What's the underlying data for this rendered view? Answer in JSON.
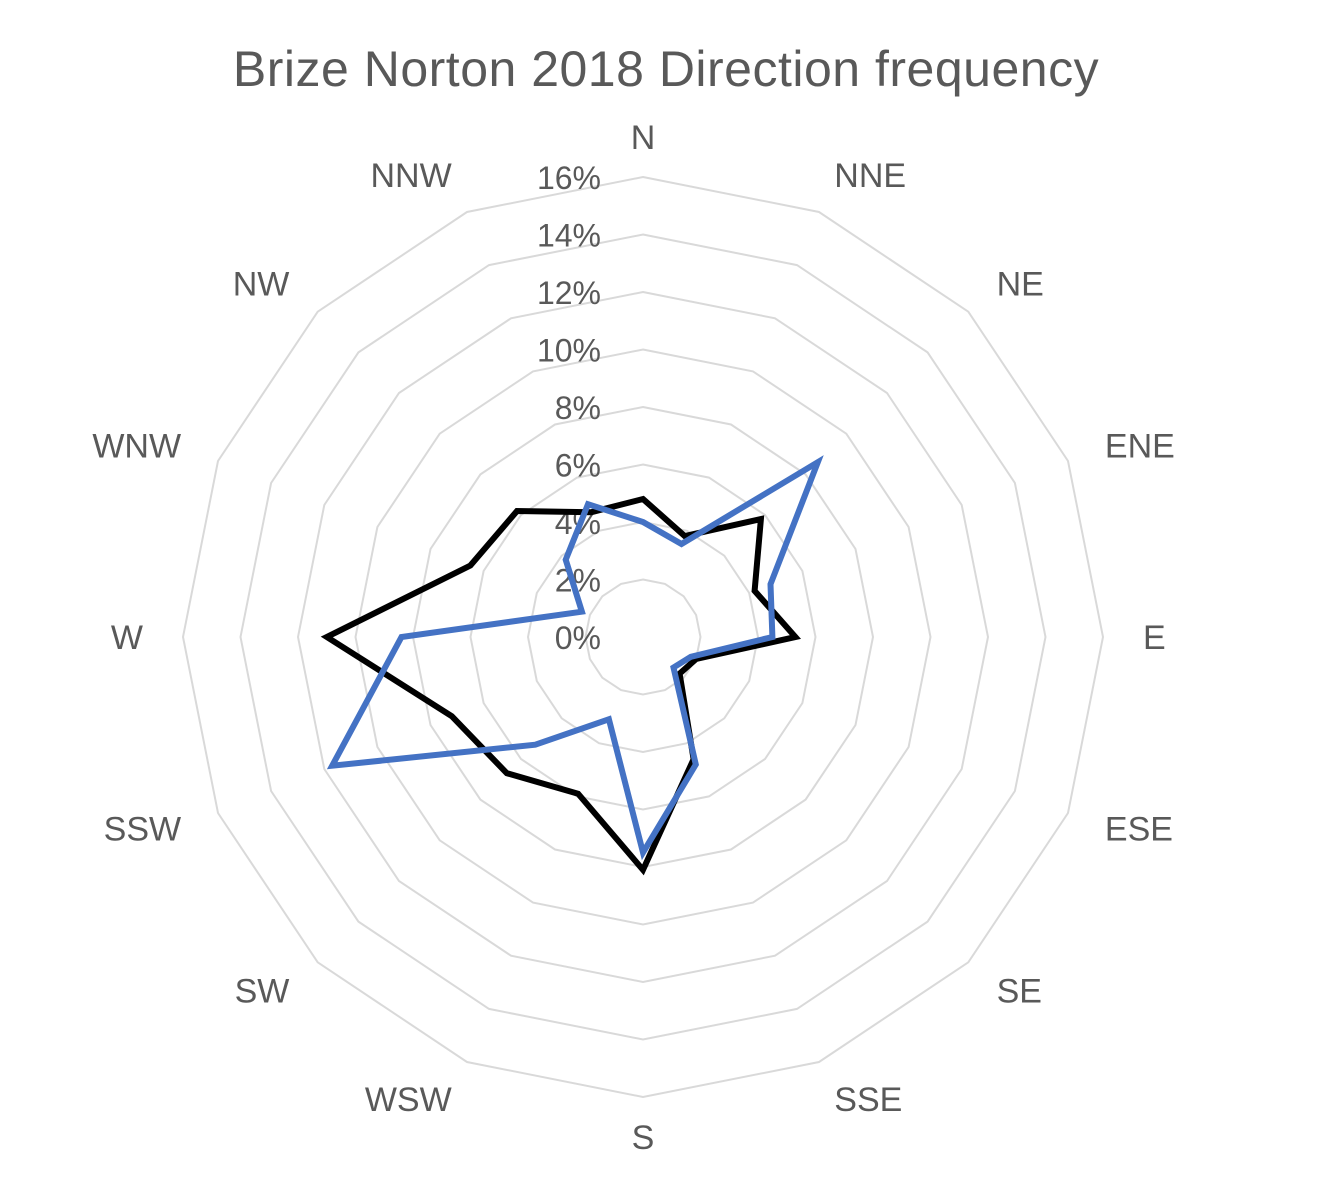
{
  "chart_data": {
    "type": "radar",
    "title": "Brize Norton 2018 Direction frequency",
    "categories": [
      "N",
      "NNE",
      "NE",
      "ENE",
      "E",
      "ESE",
      "SE",
      "SSE",
      "S",
      "WSW",
      "SW",
      "SSW",
      "W",
      "WNW",
      "NW",
      "NNW"
    ],
    "radial_ticks": [
      "0%",
      "2%",
      "4%",
      "6%",
      "8%",
      "10%",
      "12%",
      "14%",
      "16%"
    ],
    "rmax": 16,
    "grid": true,
    "legend": "none",
    "series": [
      {
        "color": "#000000",
        "values": [
          4.8,
          3.8,
          5.8,
          4.2,
          5.3,
          2.0,
          1.8,
          4.6,
          8.1,
          5.9,
          6.7,
          7.2,
          11.0,
          6.5,
          6.2,
          4.7
        ]
      },
      {
        "color": "#4472C4",
        "values": [
          4.0,
          3.5,
          8.6,
          4.8,
          4.5,
          1.8,
          1.5,
          4.8,
          7.5,
          3.1,
          5.3,
          11.7,
          8.4,
          2.3,
          3.8,
          5.0
        ]
      }
    ]
  }
}
